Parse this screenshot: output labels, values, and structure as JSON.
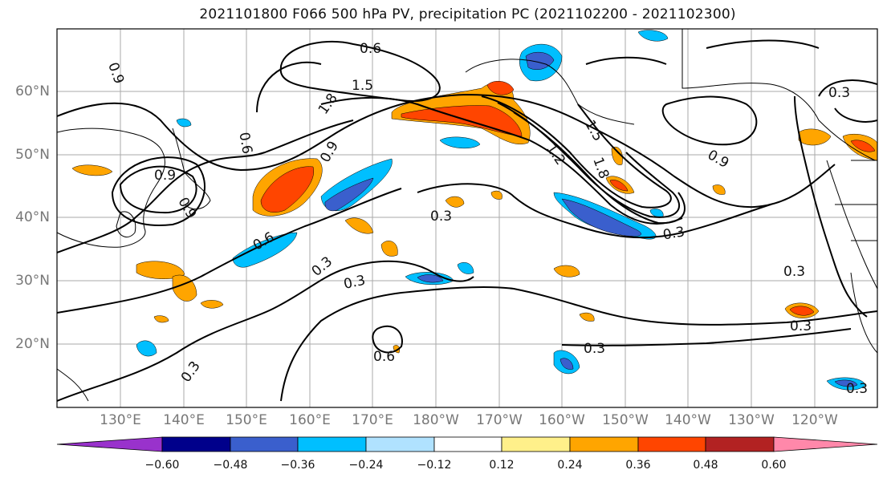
{
  "title": "2021101800 F066 500 hPa PV, precipitation PC (2021102200 - 2021102300)",
  "lat_labels": [
    "60°N",
    "50°N",
    "40°N",
    "30°N",
    "20°N"
  ],
  "lon_labels": [
    "130°E",
    "140°E",
    "150°E",
    "160°E",
    "170°E",
    "180°W",
    "170°W",
    "160°W",
    "150°W",
    "140°W",
    "130°W",
    "120°W"
  ],
  "contour_labels": [
    "0.9",
    "0.6",
    "1.5",
    "1.8",
    "0.9",
    "0.6",
    "0.9",
    "0.9",
    "0.3",
    "0.6",
    "0.3",
    "0.3",
    "0.6",
    "0.3",
    "1.5",
    "1.2",
    "1.8",
    "0.3",
    "0.9",
    "0.3",
    "0.3",
    "0.3",
    "0.3",
    "0.3"
  ],
  "colorbar": {
    "tick_labels": [
      "−0.60",
      "−0.48",
      "−0.36",
      "−0.24",
      "−0.12",
      "0.12",
      "0.24",
      "0.36",
      "0.48",
      "0.60"
    ],
    "colors": [
      "#9932cc",
      "#00008b",
      "#3a5fcd",
      "#00bfff",
      "#b0e2ff",
      "#ffffff",
      "#fff08a",
      "#ffa500",
      "#ff4500",
      "#b22222",
      "#ff88aa"
    ]
  },
  "map_extent": {
    "lon_min": 120,
    "lon_max": 245,
    "lat_min": 10,
    "lat_max": 70
  },
  "colors": {
    "frame": "#000000",
    "grid": "#aaaaaa",
    "axis_text": "#777777"
  }
}
